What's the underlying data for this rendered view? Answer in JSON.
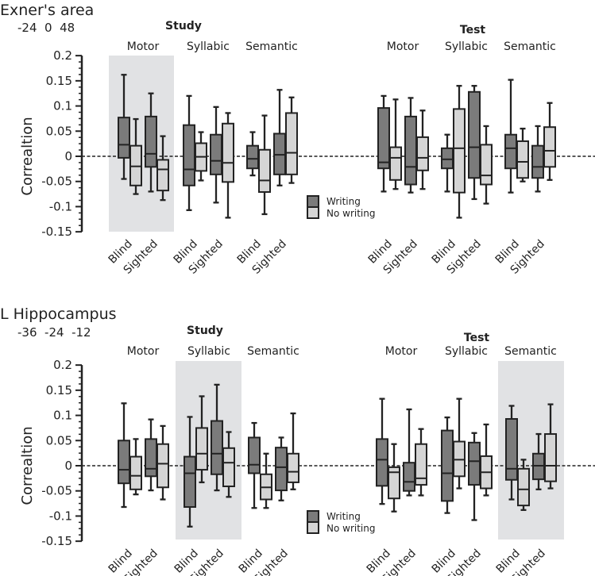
{
  "colors": {
    "writing": "#7b7b7b",
    "no_writing": "#d5d5d5",
    "highlight": "#e1e2e4",
    "stroke": "#222222"
  },
  "chart_data": [
    {
      "type": "boxplot",
      "title": "Exner's area",
      "coordinates": "-24  0  48",
      "ylabel": "Correaltion",
      "ylim": [
        -0.15,
        0.2
      ],
      "yticks": [
        "0.2",
        "0.15",
        "0.1",
        "0.05",
        "0",
        "-0.05",
        "-0.1",
        "-0.15"
      ],
      "reference_line": 0,
      "legend": {
        "placement": "center",
        "entries": [
          "Writing",
          "No writing"
        ]
      },
      "xtick_labels": [
        "Blind",
        "Sighted"
      ],
      "highlight": {
        "panel": "Study",
        "category": "Motor"
      },
      "panels": [
        {
          "name": "Study",
          "categories": [
            {
              "name": "Motor",
              "boxes": [
                {
                  "group": "Blind",
                  "condition": "Writing",
                  "stats": [
                    -0.045,
                    -0.003,
                    0.023,
                    0.077,
                    0.162
                  ]
                },
                {
                  "group": "Blind",
                  "condition": "No writing",
                  "stats": [
                    -0.075,
                    -0.058,
                    -0.02,
                    0.021,
                    0.074
                  ]
                },
                {
                  "group": "Sighted",
                  "condition": "Writing",
                  "stats": [
                    -0.07,
                    -0.021,
                    0.005,
                    0.079,
                    0.125
                  ]
                },
                {
                  "group": "Sighted",
                  "condition": "No writing",
                  "stats": [
                    -0.087,
                    -0.068,
                    -0.026,
                    -0.007,
                    0.04
                  ]
                }
              ]
            },
            {
              "name": "Syllabic",
              "boxes": [
                {
                  "group": "Blind",
                  "condition": "Writing",
                  "stats": [
                    -0.107,
                    -0.058,
                    -0.026,
                    0.062,
                    0.12
                  ]
                },
                {
                  "group": "Blind",
                  "condition": "No writing",
                  "stats": [
                    -0.048,
                    -0.029,
                    -0.001,
                    0.026,
                    0.048
                  ]
                },
                {
                  "group": "Sighted",
                  "condition": "Writing",
                  "stats": [
                    -0.092,
                    -0.036,
                    -0.009,
                    0.043,
                    0.098
                  ]
                },
                {
                  "group": "Sighted",
                  "condition": "No writing",
                  "stats": [
                    -0.122,
                    -0.051,
                    -0.013,
                    0.065,
                    0.086
                  ]
                }
              ]
            },
            {
              "name": "Semantic",
              "boxes": [
                {
                  "group": "Blind",
                  "condition": "Writing",
                  "stats": [
                    -0.038,
                    -0.024,
                    -0.005,
                    0.021,
                    0.048
                  ]
                },
                {
                  "group": "Blind",
                  "condition": "No writing",
                  "stats": [
                    -0.115,
                    -0.071,
                    -0.048,
                    0.013,
                    0.081
                  ]
                },
                {
                  "group": "Sighted",
                  "condition": "Writing",
                  "stats": [
                    -0.058,
                    -0.036,
                    0.003,
                    0.045,
                    0.132
                  ]
                },
                {
                  "group": "Sighted",
                  "condition": "No writing",
                  "stats": [
                    -0.053,
                    -0.036,
                    0.007,
                    0.086,
                    0.117
                  ]
                }
              ]
            }
          ]
        },
        {
          "name": "Test",
          "categories": [
            {
              "name": "Motor",
              "boxes": [
                {
                  "group": "Blind",
                  "condition": "Writing",
                  "stats": [
                    -0.07,
                    -0.024,
                    -0.012,
                    0.096,
                    0.12
                  ]
                },
                {
                  "group": "Blind",
                  "condition": "No writing",
                  "stats": [
                    -0.065,
                    -0.047,
                    -0.003,
                    0.018,
                    0.113
                  ]
                },
                {
                  "group": "Sighted",
                  "condition": "Writing",
                  "stats": [
                    -0.072,
                    -0.056,
                    -0.021,
                    0.079,
                    0.116
                  ]
                },
                {
                  "group": "Sighted",
                  "condition": "No writing",
                  "stats": [
                    -0.065,
                    -0.028,
                    -0.003,
                    0.038,
                    0.091
                  ]
                }
              ]
            },
            {
              "name": "Syllabic",
              "boxes": [
                {
                  "group": "Blind",
                  "condition": "Writing",
                  "stats": [
                    -0.07,
                    -0.024,
                    -0.006,
                    0.016,
                    0.043
                  ]
                },
                {
                  "group": "Blind",
                  "condition": "No writing",
                  "stats": [
                    -0.122,
                    -0.072,
                    0.016,
                    0.094,
                    0.14
                  ]
                },
                {
                  "group": "Sighted",
                  "condition": "Writing",
                  "stats": [
                    -0.085,
                    -0.043,
                    0.018,
                    0.128,
                    0.14
                  ]
                },
                {
                  "group": "Sighted",
                  "condition": "No writing",
                  "stats": [
                    -0.094,
                    -0.056,
                    -0.038,
                    0.023,
                    0.06
                  ]
                }
              ]
            },
            {
              "name": "Semantic",
              "boxes": [
                {
                  "group": "Blind",
                  "condition": "Writing",
                  "stats": [
                    -0.072,
                    -0.024,
                    0.016,
                    0.043,
                    0.152
                  ]
                },
                {
                  "group": "Blind",
                  "condition": "No writing",
                  "stats": [
                    -0.05,
                    -0.043,
                    -0.011,
                    0.03,
                    0.055
                  ]
                },
                {
                  "group": "Sighted",
                  "condition": "Writing",
                  "stats": [
                    -0.07,
                    -0.043,
                    -0.021,
                    0.021,
                    0.06
                  ]
                },
                {
                  "group": "Sighted",
                  "condition": "No writing",
                  "stats": [
                    -0.047,
                    -0.021,
                    0.011,
                    0.058,
                    0.106
                  ]
                }
              ]
            }
          ]
        }
      ]
    },
    {
      "type": "boxplot",
      "title": "L Hippocampus",
      "coordinates": "-36  -24  -12",
      "ylabel": "Correaltion",
      "ylim": [
        -0.15,
        0.2
      ],
      "yticks": [
        "0.2",
        "0.15",
        "0.1",
        "0.05",
        "0",
        "-0.05",
        "-0.1",
        "-0.15"
      ],
      "reference_line": 0,
      "legend": {
        "placement": "center",
        "entries": [
          "Writing",
          "No writing"
        ]
      },
      "xtick_labels": [
        "Blind",
        "Sighted"
      ],
      "highlight": [
        {
          "panel": "Study",
          "category": "Syllabic"
        },
        {
          "panel": "Test",
          "category": "Semantic"
        }
      ],
      "panels": [
        {
          "name": "Study",
          "categories": [
            {
              "name": "Motor",
              "boxes": [
                {
                  "group": "Blind",
                  "condition": "Writing",
                  "stats": [
                    -0.082,
                    -0.035,
                    -0.008,
                    0.05,
                    0.124
                  ]
                },
                {
                  "group": "Blind",
                  "condition": "No writing",
                  "stats": [
                    -0.057,
                    -0.047,
                    -0.02,
                    0.018,
                    0.053
                  ]
                },
                {
                  "group": "Sighted",
                  "condition": "Writing",
                  "stats": [
                    -0.049,
                    -0.021,
                    -0.006,
                    0.053,
                    0.092
                  ]
                },
                {
                  "group": "Sighted",
                  "condition": "No writing",
                  "stats": [
                    -0.067,
                    -0.043,
                    0.004,
                    0.043,
                    0.079
                  ]
                }
              ]
            },
            {
              "name": "Syllabic",
              "boxes": [
                {
                  "group": "Blind",
                  "condition": "Writing",
                  "stats": [
                    -0.121,
                    -0.082,
                    -0.015,
                    0.018,
                    0.097
                  ]
                },
                {
                  "group": "Blind",
                  "condition": "No writing",
                  "stats": [
                    -0.033,
                    -0.008,
                    0.024,
                    0.075,
                    0.138
                  ]
                },
                {
                  "group": "Sighted",
                  "condition": "Writing",
                  "stats": [
                    -0.049,
                    -0.017,
                    0.024,
                    0.089,
                    0.161
                  ]
                },
                {
                  "group": "Sighted",
                  "condition": "No writing",
                  "stats": [
                    -0.062,
                    -0.041,
                    0.006,
                    0.035,
                    0.067
                  ]
                }
              ]
            },
            {
              "name": "Semantic",
              "boxes": [
                {
                  "group": "Blind",
                  "condition": "Writing",
                  "stats": [
                    -0.084,
                    -0.015,
                    0.002,
                    0.056,
                    0.085
                  ]
                },
                {
                  "group": "Blind",
                  "condition": "No writing",
                  "stats": [
                    -0.084,
                    -0.067,
                    -0.043,
                    -0.017,
                    0.024
                  ]
                },
                {
                  "group": "Sighted",
                  "condition": "Writing",
                  "stats": [
                    -0.069,
                    -0.049,
                    -0.003,
                    0.036,
                    0.056
                  ]
                },
                {
                  "group": "Sighted",
                  "condition": "No writing",
                  "stats": [
                    -0.047,
                    -0.033,
                    -0.012,
                    0.024,
                    0.104
                  ]
                }
              ]
            }
          ]
        },
        {
          "name": "Test",
          "categories": [
            {
              "name": "Motor",
              "boxes": [
                {
                  "group": "Blind",
                  "condition": "Writing",
                  "stats": [
                    -0.076,
                    -0.04,
                    0.012,
                    0.053,
                    0.133
                  ]
                },
                {
                  "group": "Blind",
                  "condition": "No writing",
                  "stats": [
                    -0.091,
                    -0.065,
                    -0.013,
                    -0.003,
                    0.043
                  ]
                },
                {
                  "group": "Sighted",
                  "condition": "Writing",
                  "stats": [
                    -0.059,
                    -0.05,
                    -0.032,
                    0.006,
                    0.112
                  ]
                },
                {
                  "group": "Sighted",
                  "condition": "No writing",
                  "stats": [
                    -0.059,
                    -0.038,
                    -0.025,
                    0.043,
                    0.073
                  ]
                }
              ]
            },
            {
              "name": "Syllabic",
              "boxes": [
                {
                  "group": "Blind",
                  "condition": "Writing",
                  "stats": [
                    -0.094,
                    -0.07,
                    -0.015,
                    0.07,
                    0.096
                  ]
                },
                {
                  "group": "Blind",
                  "condition": "No writing",
                  "stats": [
                    -0.045,
                    -0.021,
                    0.012,
                    0.048,
                    0.133
                  ]
                },
                {
                  "group": "Sighted",
                  "condition": "Writing",
                  "stats": [
                    -0.108,
                    -0.038,
                    0.009,
                    0.046,
                    0.065
                  ]
                },
                {
                  "group": "Sighted",
                  "condition": "No writing",
                  "stats": [
                    -0.059,
                    -0.045,
                    -0.013,
                    0.019,
                    0.082
                  ]
                }
              ]
            },
            {
              "name": "Semantic",
              "boxes": [
                {
                  "group": "Blind",
                  "condition": "Writing",
                  "stats": [
                    -0.067,
                    -0.028,
                    -0.006,
                    0.093,
                    0.119
                  ]
                },
                {
                  "group": "Blind",
                  "condition": "No writing",
                  "stats": [
                    -0.088,
                    -0.079,
                    -0.047,
                    -0.006,
                    0.012
                  ]
                },
                {
                  "group": "Sighted",
                  "condition": "Writing",
                  "stats": [
                    -0.047,
                    -0.027,
                    0,
                    0.024,
                    0.063
                  ]
                },
                {
                  "group": "Sighted",
                  "condition": "No writing",
                  "stats": [
                    -0.045,
                    -0.031,
                    0,
                    0.063,
                    0.122
                  ]
                }
              ]
            }
          ]
        }
      ]
    }
  ]
}
